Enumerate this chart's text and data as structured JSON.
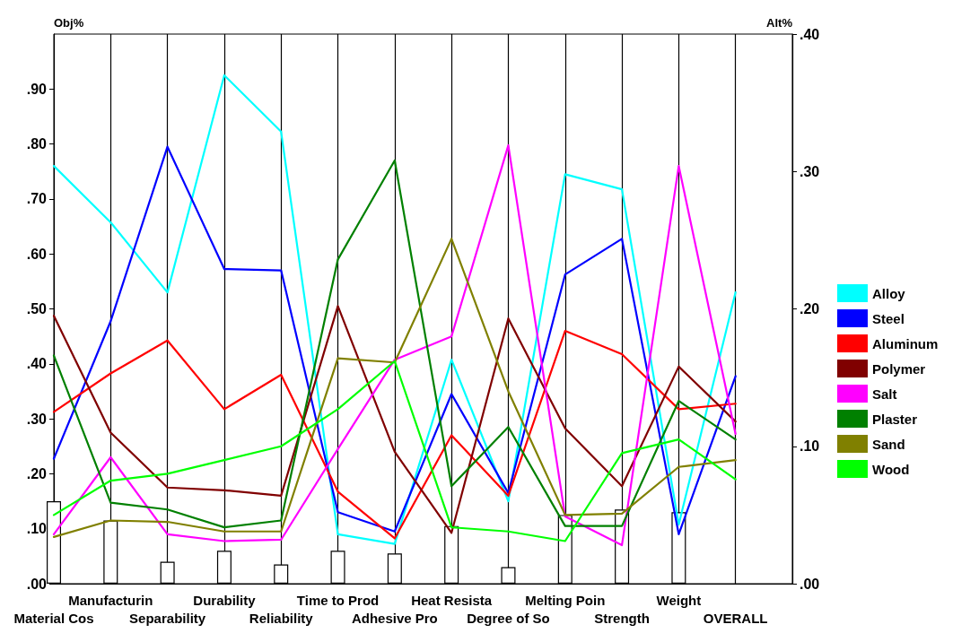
{
  "chart_data": {
    "type": "line",
    "ylabel": "Obj%",
    "y2label": "Alt%",
    "categories": [
      "Material Cos",
      "Manufacturin",
      "Separability",
      "Durability",
      "Reliability",
      "Time to Prod",
      "Adhesive Pro",
      "Heat Resista",
      "Degree of So",
      "Melting Poin",
      "Strength",
      "Weight",
      "OVERALL"
    ],
    "series": [
      {
        "type": "bar",
        "color": "#ffffff",
        "values": [
          0.15,
          0.115,
          0.04,
          0.06,
          0.035,
          0.06,
          0.055,
          0.105,
          0.03,
          0.125,
          0.135,
          0.13,
          null
        ]
      },
      {
        "name": "Alloy",
        "color": "#00ffff",
        "axis": "y2",
        "values": [
          0.304,
          0.263,
          0.212,
          0.37,
          0.329,
          0.036,
          0.029,
          0.163,
          0.06,
          0.298,
          0.287,
          0.043,
          0.212
        ]
      },
      {
        "name": "Steel",
        "color": "#0000ff",
        "axis": "y2",
        "values": [
          0.091,
          0.191,
          0.318,
          0.229,
          0.228,
          0.052,
          0.038,
          0.138,
          0.066,
          0.225,
          0.251,
          0.036,
          0.151
        ]
      },
      {
        "name": "Aluminum",
        "color": "#ff0000",
        "axis": "y2",
        "values": [
          0.125,
          0.153,
          0.177,
          0.127,
          0.152,
          0.067,
          0.033,
          0.108,
          0.064,
          0.184,
          0.167,
          0.127,
          0.131
        ]
      },
      {
        "name": "Polymer",
        "color": "#800000",
        "axis": "y2",
        "values": [
          0.195,
          0.11,
          0.07,
          0.068,
          0.064,
          0.202,
          0.096,
          0.037,
          0.193,
          0.113,
          0.071,
          0.158,
          0.118
        ]
      },
      {
        "name": "Salt",
        "color": "#ff00ff",
        "axis": "y2",
        "values": [
          0.036,
          0.092,
          0.036,
          0.031,
          0.032,
          0.098,
          0.163,
          0.18,
          0.319,
          0.049,
          0.028,
          0.304,
          0.109
        ]
      },
      {
        "name": "Plaster",
        "color": "#008000",
        "axis": "y2",
        "values": [
          0.166,
          0.059,
          0.054,
          0.041,
          0.046,
          0.236,
          0.308,
          0.071,
          0.114,
          0.042,
          0.042,
          0.133,
          0.105
        ]
      },
      {
        "name": "Sand",
        "color": "#808000",
        "axis": "y2",
        "values": [
          0.034,
          0.046,
          0.045,
          0.038,
          0.038,
          0.164,
          0.161,
          0.251,
          0.14,
          0.05,
          0.051,
          0.085,
          0.09
        ]
      },
      {
        "name": "Wood",
        "color": "#00ff00",
        "axis": "y2",
        "values": [
          0.05,
          0.075,
          0.08,
          0.09,
          0.1,
          0.127,
          0.162,
          0.041,
          0.038,
          0.031,
          0.095,
          0.105,
          0.076
        ]
      }
    ],
    "ylim": [
      0,
      1
    ],
    "yticks": [
      {
        "value": 0,
        "label": ".00"
      },
      {
        "value": 0.1,
        "label": ".10"
      },
      {
        "value": 0.2,
        "label": ".20"
      },
      {
        "value": 0.3,
        "label": ".30"
      },
      {
        "value": 0.4,
        "label": ".40"
      },
      {
        "value": 0.5,
        "label": ".50"
      },
      {
        "value": 0.6,
        "label": ".60"
      },
      {
        "value": 0.7,
        "label": ".70"
      },
      {
        "value": 0.8,
        "label": ".80"
      },
      {
        "value": 0.9,
        "label": ".90"
      }
    ],
    "y2lim": [
      0,
      0.4
    ],
    "y2ticks": [
      {
        "value": 0,
        "label": ".00"
      },
      {
        "value": 0.1,
        "label": ".10"
      },
      {
        "value": 0.2,
        "label": ".20"
      },
      {
        "value": 0.3,
        "label": ".30"
      },
      {
        "value": 0.4,
        "label": ".40"
      }
    ],
    "grid": "x",
    "legend": "right",
    "marker": "none",
    "line_style": "solid"
  }
}
